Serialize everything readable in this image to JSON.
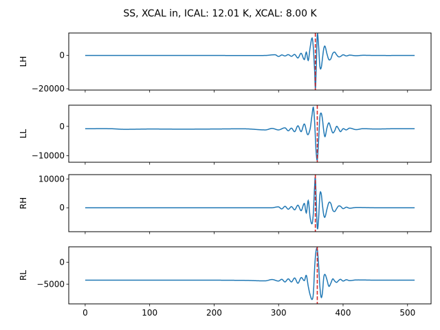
{
  "chart_data": {
    "type": "line",
    "title": "SS, XCAL in, ICAL: 12.01 K, XCAL: 8.00 K",
    "x_range": [
      0,
      511
    ],
    "xlim": [
      -25.5,
      536.5
    ],
    "x_ticks": [
      0,
      100,
      200,
      300,
      400,
      500
    ],
    "x_tick_labels": [
      "0",
      "100",
      "200",
      "300",
      "400",
      "500"
    ],
    "panels": [
      {
        "ylabel": "LH",
        "ylim": [
          -20800,
          13500
        ],
        "yticks": [
          0,
          -20000
        ],
        "ytick_labels": [
          "0",
          "−20000"
        ],
        "baseline": 0,
        "peak_index": 357,
        "peak_polarity": -1,
        "peak_amplitude": 20500,
        "marker_x": 357,
        "points": [
          [
            0,
            0
          ],
          [
            100,
            0
          ],
          [
            200,
            0
          ],
          [
            280,
            0
          ],
          [
            295,
            400
          ],
          [
            300,
            -600
          ],
          [
            305,
            300
          ],
          [
            310,
            -300
          ],
          [
            315,
            500
          ],
          [
            320,
            -500
          ],
          [
            325,
            600
          ],
          [
            330,
            -1500
          ],
          [
            335,
            1300
          ],
          [
            340,
            -2500
          ],
          [
            343,
            2000
          ],
          [
            346,
            -3000
          ],
          [
            349,
            5000
          ],
          [
            352,
            10500
          ],
          [
            354,
            4000
          ],
          [
            356,
            -10000
          ],
          [
            357,
            -20500
          ],
          [
            358,
            -12000
          ],
          [
            360,
            12500
          ],
          [
            362,
            6000
          ],
          [
            364,
            -6500
          ],
          [
            366,
            -7500
          ],
          [
            368,
            -2000
          ],
          [
            370,
            4000
          ],
          [
            372,
            5500
          ],
          [
            375,
            1000
          ],
          [
            378,
            -2500
          ],
          [
            381,
            -2000
          ],
          [
            384,
            1200
          ],
          [
            387,
            2000
          ],
          [
            390,
            400
          ],
          [
            393,
            -800
          ],
          [
            396,
            -600
          ],
          [
            400,
            400
          ],
          [
            405,
            -300
          ],
          [
            410,
            200
          ],
          [
            420,
            -150
          ],
          [
            430,
            100
          ],
          [
            450,
            0
          ],
          [
            511,
            0
          ]
        ]
      },
      {
        "ylabel": "LL",
        "ylim": [
          -12200,
          7200
        ],
        "yticks": [
          0,
          -10000
        ],
        "ytick_labels": [
          "0",
          "−10000"
        ],
        "baseline": -800,
        "peak_index": 360,
        "peak_polarity": -1,
        "peak_amplitude": 11500,
        "marker_x": 360,
        "points": [
          [
            0,
            -800
          ],
          [
            40,
            -800
          ],
          [
            60,
            -1000
          ],
          [
            100,
            -900
          ],
          [
            150,
            -950
          ],
          [
            200,
            -900
          ],
          [
            250,
            -850
          ],
          [
            280,
            -1200
          ],
          [
            290,
            -700
          ],
          [
            300,
            -1200
          ],
          [
            310,
            -500
          ],
          [
            315,
            -1500
          ],
          [
            320,
            -600
          ],
          [
            325,
            -1800
          ],
          [
            330,
            200
          ],
          [
            335,
            -1800
          ],
          [
            340,
            800
          ],
          [
            345,
            -2800
          ],
          [
            349,
            -800
          ],
          [
            352,
            4000
          ],
          [
            354,
            6500
          ],
          [
            356,
            1000
          ],
          [
            358,
            -8000
          ],
          [
            360,
            -11500
          ],
          [
            362,
            -5000
          ],
          [
            364,
            3000
          ],
          [
            366,
            4500
          ],
          [
            368,
            2500
          ],
          [
            370,
            -1500
          ],
          [
            372,
            -3500
          ],
          [
            375,
            -500
          ],
          [
            378,
            1200
          ],
          [
            381,
            -500
          ],
          [
            384,
            -2200
          ],
          [
            387,
            -1500
          ],
          [
            390,
            0
          ],
          [
            393,
            -800
          ],
          [
            396,
            -1800
          ],
          [
            400,
            -800
          ],
          [
            405,
            -1200
          ],
          [
            410,
            -600
          ],
          [
            420,
            -1100
          ],
          [
            430,
            -800
          ],
          [
            450,
            -900
          ],
          [
            480,
            -800
          ],
          [
            511,
            -800
          ]
        ]
      },
      {
        "ylabel": "RH",
        "ylim": [
          -8300,
          11500
        ],
        "yticks": [
          0,
          10000
        ],
        "ytick_labels": [
          "0",
          "10000"
        ],
        "baseline": 0,
        "peak_index": 357,
        "peak_polarity": 1,
        "peak_amplitude": 10800,
        "marker_x": 357,
        "points": [
          [
            0,
            0
          ],
          [
            100,
            0
          ],
          [
            200,
            0
          ],
          [
            290,
            0
          ],
          [
            300,
            300
          ],
          [
            305,
            -400
          ],
          [
            310,
            500
          ],
          [
            315,
            -500
          ],
          [
            320,
            400
          ],
          [
            325,
            -700
          ],
          [
            330,
            900
          ],
          [
            335,
            -1000
          ],
          [
            340,
            1500
          ],
          [
            343,
            -1800
          ],
          [
            346,
            2500
          ],
          [
            349,
            -3500
          ],
          [
            352,
            -5500
          ],
          [
            354,
            -1500
          ],
          [
            356,
            8000
          ],
          [
            357,
            10800
          ],
          [
            358,
            5000
          ],
          [
            360,
            -7000
          ],
          [
            362,
            -4000
          ],
          [
            364,
            4500
          ],
          [
            366,
            5000
          ],
          [
            368,
            1000
          ],
          [
            370,
            -2500
          ],
          [
            372,
            -3200
          ],
          [
            375,
            -500
          ],
          [
            378,
            1800
          ],
          [
            381,
            1500
          ],
          [
            384,
            -800
          ],
          [
            387,
            -1300
          ],
          [
            390,
            -300
          ],
          [
            393,
            600
          ],
          [
            396,
            500
          ],
          [
            400,
            -300
          ],
          [
            405,
            200
          ],
          [
            410,
            -150
          ],
          [
            420,
            100
          ],
          [
            450,
            0
          ],
          [
            511,
            0
          ]
        ]
      },
      {
        "ylabel": "RL",
        "ylim": [
          -9500,
          3500
        ],
        "yticks": [
          0,
          -5000
        ],
        "ytick_labels": [
          "0",
          "−5000"
        ],
        "baseline": -4100,
        "peak_index": 360,
        "peak_polarity": 1,
        "peak_amplitude": 3000,
        "marker_x": 360,
        "points": [
          [
            0,
            -4100
          ],
          [
            100,
            -4100
          ],
          [
            200,
            -4100
          ],
          [
            250,
            -4150
          ],
          [
            280,
            -4250
          ],
          [
            290,
            -3950
          ],
          [
            300,
            -4300
          ],
          [
            305,
            -3900
          ],
          [
            310,
            -4500
          ],
          [
            315,
            -3800
          ],
          [
            320,
            -4500
          ],
          [
            325,
            -3600
          ],
          [
            330,
            -4800
          ],
          [
            335,
            -3500
          ],
          [
            340,
            -4200
          ],
          [
            343,
            -3000
          ],
          [
            346,
            -5500
          ],
          [
            349,
            -7500
          ],
          [
            352,
            -8500
          ],
          [
            354,
            -7000
          ],
          [
            356,
            -1000
          ],
          [
            358,
            2500
          ],
          [
            360,
            3000
          ],
          [
            362,
            -500
          ],
          [
            364,
            -5500
          ],
          [
            366,
            -8000
          ],
          [
            368,
            -7000
          ],
          [
            370,
            -3500
          ],
          [
            372,
            -2800
          ],
          [
            375,
            -4000
          ],
          [
            378,
            -5500
          ],
          [
            381,
            -4800
          ],
          [
            384,
            -3800
          ],
          [
            387,
            -4300
          ],
          [
            390,
            -4600
          ],
          [
            393,
            -4200
          ],
          [
            396,
            -3900
          ],
          [
            400,
            -4300
          ],
          [
            405,
            -4000
          ],
          [
            410,
            -4200
          ],
          [
            420,
            -4050
          ],
          [
            450,
            -4100
          ],
          [
            511,
            -4100
          ]
        ]
      }
    ]
  }
}
